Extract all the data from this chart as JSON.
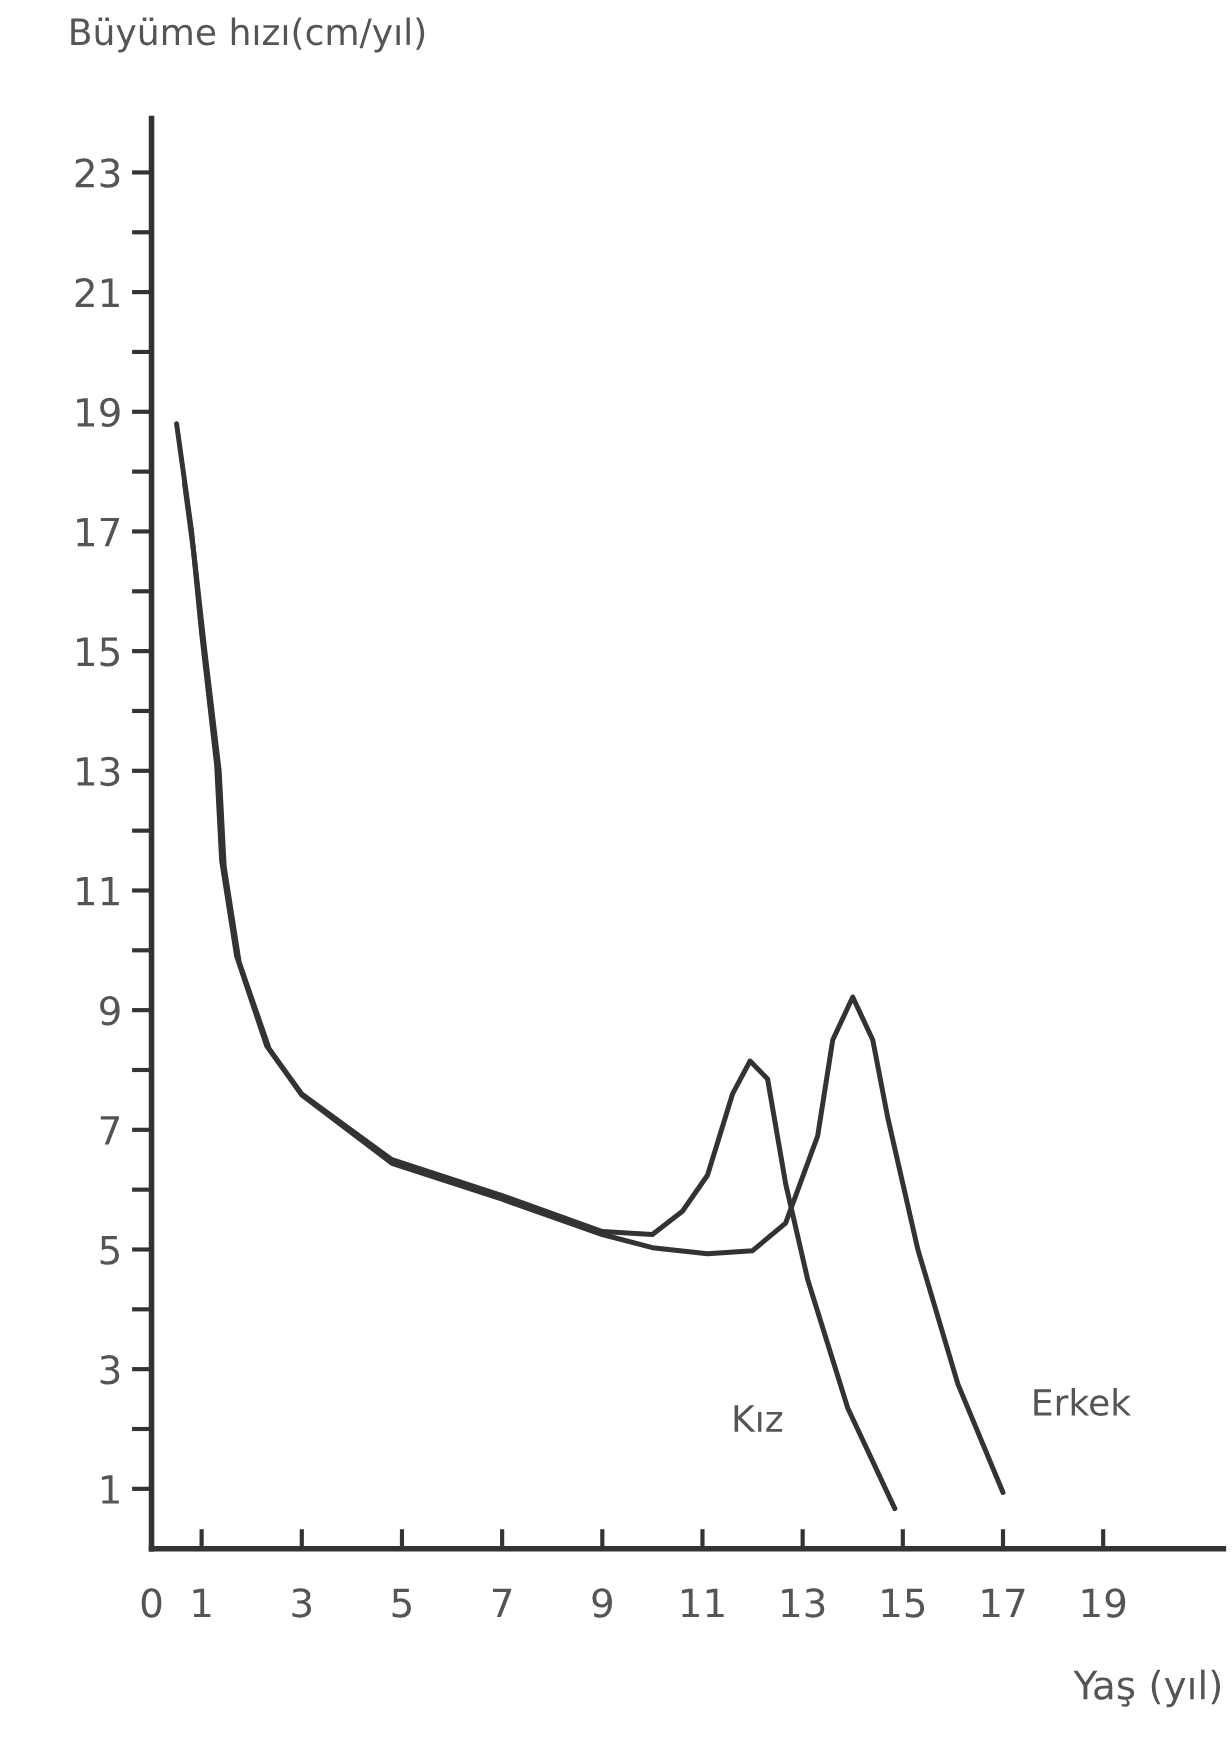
{
  "chart_data": {
    "type": "line",
    "ylabel": "Büyüme hızı(cm/yıl)",
    "xlabel": "Yaş (yıl)",
    "xlim": [
      0,
      21.4
    ],
    "ylim": [
      0,
      23.9
    ],
    "xticks": [
      0,
      1,
      3,
      5,
      7,
      9,
      11,
      13,
      15,
      17,
      19
    ],
    "yticks": [
      1,
      {
        "value": 2,
        "label": null
      },
      3,
      {
        "value": 4,
        "label": null
      },
      5,
      {
        "value": 6,
        "label": null
      },
      7,
      {
        "value": 8,
        "label": null
      },
      9,
      {
        "value": 10,
        "label": null
      },
      11,
      {
        "value": 12,
        "label": null
      },
      13,
      {
        "value": 14,
        "label": null
      },
      15,
      {
        "value": 16,
        "label": null
      },
      17,
      {
        "value": 18,
        "label": null
      },
      19,
      {
        "value": 20,
        "label": null
      },
      21,
      {
        "value": 22,
        "label": null
      },
      23
    ],
    "grid": false,
    "legend": false,
    "series": [
      {
        "name": "Kız",
        "color": "#333333",
        "x": [
          0.5,
          0.8,
          1.0,
          1.3,
          1.4,
          1.7,
          2.3,
          3.0,
          4.8,
          7.0,
          9.0,
          10.0,
          10.6,
          11.1,
          11.6,
          11.95,
          12.3,
          12.66,
          13.1,
          13.9,
          14.84
        ],
        "values": [
          18.8,
          17.0,
          15.3,
          13.1,
          11.5,
          9.9,
          8.4,
          7.6,
          6.5,
          5.9,
          5.3,
          5.25,
          5.64,
          6.24,
          7.6,
          8.15,
          7.85,
          6.1,
          4.5,
          2.35,
          0.67
        ]
      },
      {
        "name": "Erkek",
        "color": "#333333",
        "x": [
          0.66,
          0.85,
          1.05,
          1.35,
          1.45,
          1.75,
          2.35,
          3.0,
          4.8,
          7.0,
          9.0,
          10.0,
          11.1,
          12.0,
          12.66,
          13.3,
          13.6,
          14.0,
          14.4,
          14.7,
          15.3,
          16.1,
          17.0
        ],
        "values": [
          17.8,
          16.6,
          15.1,
          13.0,
          11.4,
          9.8,
          8.35,
          7.58,
          6.44,
          5.84,
          5.25,
          5.03,
          4.93,
          4.98,
          5.44,
          6.9,
          8.5,
          9.22,
          8.5,
          7.2,
          5.0,
          2.75,
          0.94
        ]
      }
    ]
  }
}
